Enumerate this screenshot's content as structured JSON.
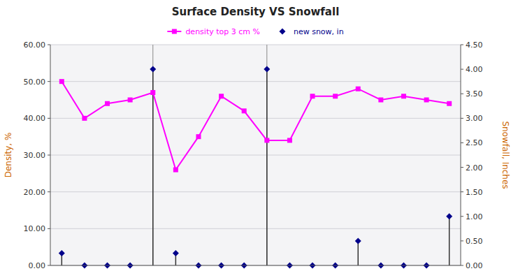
{
  "chart_data": {
    "type": "line",
    "title": "Surface Density VS Snowfall",
    "ylabel": "Density, %",
    "y2label": "Snowfall, Inches",
    "categories": [
      null,
      null,
      null,
      null,
      null,
      null,
      null,
      null,
      null,
      null,
      null,
      null,
      null,
      null,
      null,
      null,
      null,
      null
    ],
    "series": [
      {
        "name": "density top 3 cm %",
        "type": "line",
        "color": "#FF00FF",
        "marker": "square",
        "values": [
          50,
          40,
          44,
          45,
          47,
          26,
          35,
          46,
          42,
          34,
          34,
          46,
          46,
          48,
          45,
          46,
          45,
          44
        ]
      },
      {
        "name": "new snow, in",
        "type": "stem",
        "axis": "y2",
        "color": "#00008B",
        "marker": "diamond",
        "values": [
          0.25,
          0,
          0,
          0,
          4.0,
          0.25,
          0,
          0,
          0,
          4.0,
          0,
          0,
          0,
          0.5,
          0,
          0,
          0,
          1.0
        ]
      }
    ],
    "ylim": [
      0,
      60
    ],
    "yticks": [
      {
        "value": 0,
        "label": "0.00"
      },
      {
        "value": 10,
        "label": "10.00"
      },
      {
        "value": 20,
        "label": "20.00"
      },
      {
        "value": 30,
        "label": "30.00"
      },
      {
        "value": 40,
        "label": "40.00"
      },
      {
        "value": 50,
        "label": "50.00"
      },
      {
        "value": 60,
        "label": "60.00"
      }
    ],
    "y2lim": [
      0,
      4.5
    ],
    "y2ticks": [
      {
        "value": 0.0,
        "label": "0.00"
      },
      {
        "value": 0.5,
        "label": "0.50"
      },
      {
        "value": 1.0,
        "label": "1.00"
      },
      {
        "value": 1.5,
        "label": "1.50"
      },
      {
        "value": 2.0,
        "label": "2.00"
      },
      {
        "value": 2.5,
        "label": "2.50"
      },
      {
        "value": 3.0,
        "label": "3.00"
      },
      {
        "value": 3.5,
        "label": "3.50"
      },
      {
        "value": 4.0,
        "label": "4.00"
      },
      {
        "value": 4.5,
        "label": "4.50"
      }
    ],
    "vlines": [
      4,
      9
    ],
    "grid": true,
    "legend": "top",
    "tick_labels": "y"
  }
}
